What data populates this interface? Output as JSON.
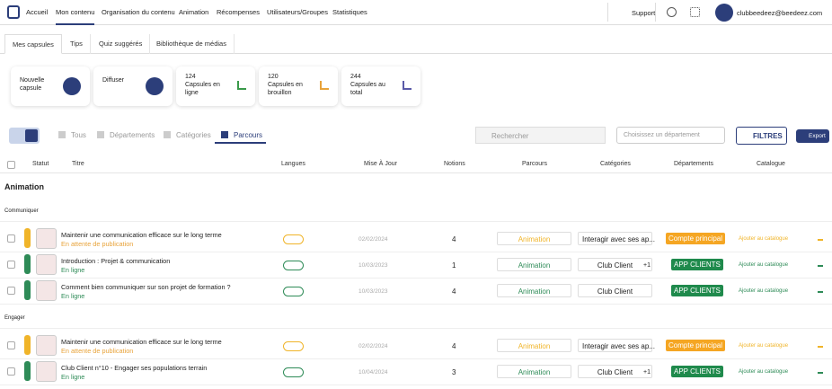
{
  "nav": {
    "items": [
      "Accueil",
      "Mon contenu",
      "Organisation du contenu",
      "Animation",
      "Récompenses",
      "Utilisateurs/Groupes",
      "Statistiques"
    ],
    "support": "Support",
    "user": "clubbeedeez@beedeez.com"
  },
  "tabs": [
    "Mes capsules",
    "Tips",
    "Quiz suggérés",
    "Bibliothèque de médias"
  ],
  "cards": [
    {
      "label": "Nouvelle capsule"
    },
    {
      "label": "Diffuser"
    },
    {
      "value": "124",
      "label": "Capsules en ligne"
    },
    {
      "value": "120",
      "label": "Capsules en brouillon"
    },
    {
      "value": "244",
      "label": "Capsules au total"
    }
  ],
  "views": [
    "Tous",
    "Départements",
    "Catégories",
    "Parcours"
  ],
  "search": "Rechercher",
  "department_select": "Choisissez un département",
  "filters": "FILTRES",
  "export": "Export",
  "columns": [
    "Statut",
    "Titre",
    "Langues",
    "Mise À Jour",
    "Notions",
    "Parcours",
    "Catégories",
    "Départements",
    "Catalogue"
  ],
  "section": "Animation",
  "groups": [
    {
      "name": "Communiquer",
      "rows": [
        {
          "title": "Maintenir une communication efficace sur le long terme",
          "status": "En attente de publication",
          "date": "02/02/2024",
          "notions": "4",
          "parcours": "Animation",
          "category": "Interagir avec ses ap...",
          "department": "Compte principal",
          "catalogue": "Ajouter au catalogue"
        },
        {
          "title": "Introduction : Projet & communication",
          "status": "En ligne",
          "date": "10/03/2023",
          "notions": "1",
          "parcours": "Animation",
          "category": "Club Client",
          "extra": "+1",
          "department": "APP CLIENTS",
          "catalogue": "Ajouter au catalogue"
        },
        {
          "title": "Comment bien communiquer sur son projet de formation ?",
          "status": "En ligne",
          "date": "10/03/2023",
          "notions": "4",
          "parcours": "Animation",
          "category": "Club Client",
          "department": "APP CLIENTS",
          "catalogue": "Ajouter au catalogue"
        }
      ]
    },
    {
      "name": "Engager",
      "rows": [
        {
          "title": "Maintenir une communication efficace sur le long terme",
          "status": "En attente de publication",
          "date": "02/02/2024",
          "notions": "4",
          "parcours": "Animation",
          "category": "Interagir avec ses ap...",
          "department": "Compte principal",
          "catalogue": "Ajouter au catalogue"
        },
        {
          "title": "Club Client n°10 - Engager ses populations terrain",
          "status": "En ligne",
          "date": "10/04/2024",
          "notions": "3",
          "parcours": "Animation",
          "category": "Club Client",
          "extra": "+1",
          "department": "APP CLIENTS",
          "catalogue": "Ajouter au catalogue"
        }
      ]
    }
  ]
}
